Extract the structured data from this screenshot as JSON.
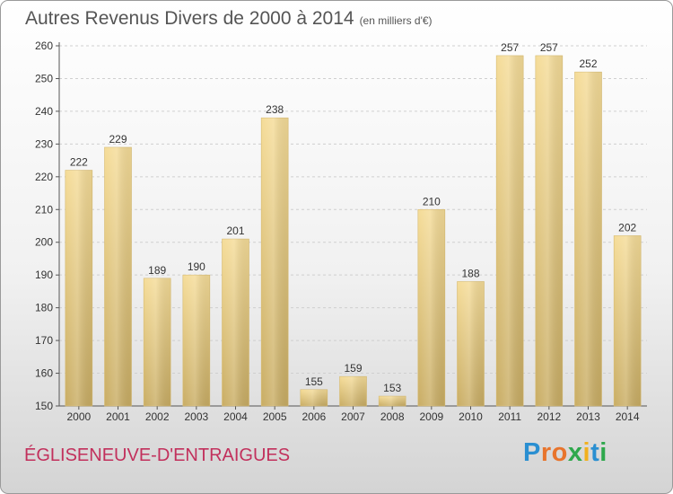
{
  "title": "Autres Revenus Divers de 2000 à 2014",
  "subtitle": "(en milliers d'€)",
  "commune": "ÉGLISENEUVE-D'ENTRAIGUES",
  "logo": {
    "letters": [
      "P",
      "r",
      "o",
      "x",
      "i",
      "t",
      "i"
    ],
    "colors": [
      "#2a8fd1",
      "#e8742c",
      "#e8742c",
      "#2ea84c",
      "#f2b01e",
      "#2a8fd1",
      "#2ea84c"
    ]
  },
  "chart_data": {
    "type": "bar",
    "title": "Autres Revenus Divers de 2000 à 2014",
    "categories": [
      "2000",
      "2001",
      "2002",
      "2003",
      "2004",
      "2005",
      "2006",
      "2007",
      "2008",
      "2009",
      "2010",
      "2011",
      "2012",
      "2013",
      "2014"
    ],
    "values": [
      222,
      229,
      189,
      190,
      201,
      238,
      155,
      159,
      153,
      210,
      188,
      257,
      257,
      252,
      202
    ],
    "ylim": [
      150,
      260
    ],
    "yticks": [
      150,
      160,
      170,
      180,
      190,
      200,
      210,
      220,
      230,
      240,
      250,
      260
    ],
    "grid": true,
    "bar_color": "#e2c57a"
  }
}
